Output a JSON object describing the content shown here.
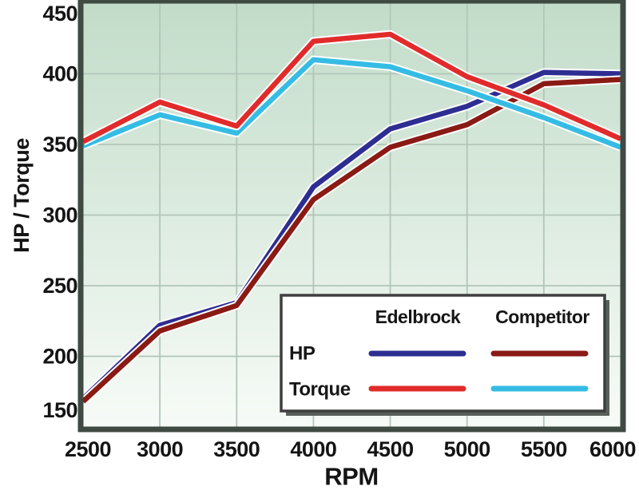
{
  "chart_data": {
    "type": "line",
    "title": "",
    "xlabel": "RPM",
    "ylabel": "HP / Torque",
    "x": [
      2500,
      3000,
      3500,
      4000,
      4500,
      5000,
      5500,
      6000
    ],
    "xlim": [
      2500,
      6000
    ],
    "ylim": [
      150,
      450
    ],
    "x_ticks": [
      2500,
      3000,
      3500,
      4000,
      4500,
      5000,
      5500,
      6000
    ],
    "y_ticks": [
      150,
      200,
      250,
      300,
      350,
      400,
      450
    ],
    "grid": true,
    "series": [
      {
        "name": "HP Edelbrock",
        "group": "HP",
        "brand": "Edelbrock",
        "color": "#2d2d92",
        "values": [
          170,
          222,
          238,
          320,
          361,
          377,
          401,
          400
        ]
      },
      {
        "name": "HP Competitor",
        "group": "HP",
        "brand": "Competitor",
        "color": "#8a1a14",
        "values": [
          168,
          218,
          236,
          311,
          348,
          364,
          393,
          396
        ]
      },
      {
        "name": "Torque Competitor",
        "group": "Torque",
        "brand": "Competitor",
        "color": "#35bce4",
        "values": [
          349,
          371,
          358,
          410,
          405,
          388,
          369,
          348
        ]
      },
      {
        "name": "Torque Edelbrock",
        "group": "Torque",
        "brand": "Edelbrock",
        "color": "#e12b2b",
        "values": [
          352,
          380,
          363,
          423,
          428,
          398,
          378,
          354
        ]
      }
    ],
    "legend": {
      "columns": [
        "Edelbrock",
        "Competitor"
      ],
      "rows": [
        "HP",
        "Torque"
      ],
      "position": "bottom-right"
    },
    "style": {
      "plot_bg_gradient_top": "#c2dcc9",
      "plot_bg_gradient_bottom": "#f7fbf7",
      "frame_color": "#3e4a42",
      "gridline_color": "#b2c6b8",
      "line_casing_color": "#ffffff",
      "legend_shadow_color": "#59605a",
      "legend_border_color": "#3f3f3f"
    }
  }
}
